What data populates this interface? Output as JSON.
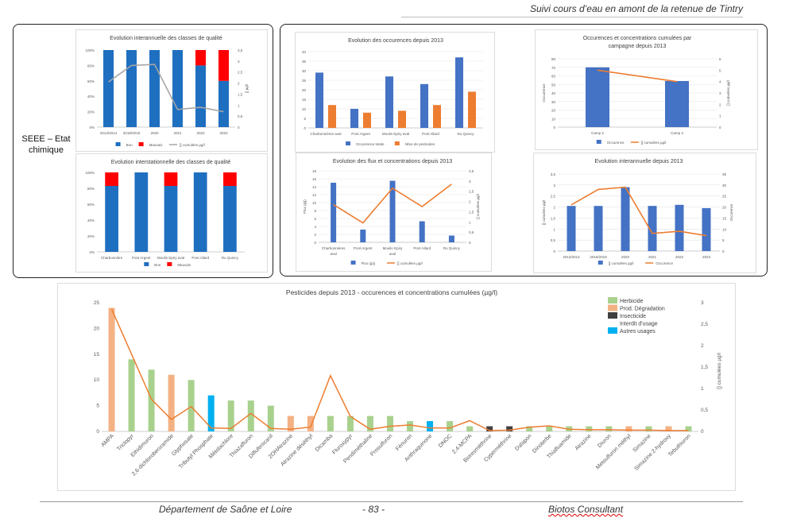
{
  "header": {
    "title": "Suivi cours d’eau en amont de la retenue de Tintry"
  },
  "footer": {
    "left": "Département de Saône et Loire",
    "page": "- 83 -",
    "right": "Biotos Consultant"
  },
  "section_label": {
    "line1": "SEEE – Etat",
    "line2": "chimique"
  },
  "colors": {
    "blue": "#4472c4",
    "orange": "#ed7d31",
    "grey": "#a5a5a5",
    "green": "#a9d18e",
    "salmon": "#f4b183",
    "dark": "#404040",
    "cyan": "#00b0f0",
    "red": "#ff0000",
    "bon": "#1f6fc0"
  },
  "chart_data": [
    {
      "id": "c1",
      "type": "bar",
      "title": "Evolution interannuelle des classes de qualité",
      "categories": [
        "2013/2014",
        "2018/2019",
        "2020",
        "2021",
        "2022",
        "2023"
      ],
      "ylim": [
        0,
        100
      ],
      "y_ticks": [
        "0%",
        "20%",
        "40%",
        "60%",
        "80%",
        "100%"
      ],
      "y2lim": [
        0,
        3.5
      ],
      "y2_ticks": [
        "0",
        "0,5",
        "1",
        "1,5",
        "2",
        "2,5",
        "3",
        "3,5"
      ],
      "y2label": "[] µg/l",
      "series": [
        {
          "name": "Bon",
          "values": [
            100,
            100,
            100,
            100,
            80,
            60
          ]
        },
        {
          "name": "Mauvais",
          "values": [
            0,
            0,
            0,
            0,
            20,
            40
          ]
        },
        {
          "name": "[] cumulées µg/l",
          "values": [
            2.05,
            2.8,
            2.85,
            0.8,
            0.9,
            0.7
          ],
          "axis": "y2"
        }
      ]
    },
    {
      "id": "c2",
      "type": "bar",
      "title": "Evolution interstationnelle des classes de qualité",
      "categories": [
        "Charbonnière",
        "Pont Argent",
        "Moulin Epiry aval",
        "Pont Allard",
        "Ru Quincy"
      ],
      "ylim": [
        0,
        100
      ],
      "y_ticks": [
        "0%",
        "20%",
        "40%",
        "60%",
        "80%",
        "100%"
      ],
      "series": [
        {
          "name": "Bon",
          "values": [
            83,
            100,
            83,
            100,
            83
          ]
        },
        {
          "name": "Mauvais",
          "values": [
            17,
            0,
            17,
            0,
            17
          ]
        }
      ]
    },
    {
      "id": "c3",
      "type": "bar",
      "title": "Evolution des occurences depuis 2013",
      "categories": [
        "Charbonnières aval",
        "Pont Argent",
        "Moulin Epiry aval",
        "Pont Allard",
        "Ru Quincy"
      ],
      "ylim": [
        0,
        40
      ],
      "y_ticks": [
        "0",
        "5",
        "10",
        "15",
        "20",
        "25",
        "30",
        "35",
        "40"
      ],
      "series": [
        {
          "name": "Occurrence totale",
          "values": [
            29,
            10,
            27,
            23,
            37
          ]
        },
        {
          "name": "Nbre de pesticides",
          "values": [
            12,
            8,
            9,
            12,
            19
          ]
        }
      ]
    },
    {
      "id": "c4",
      "type": "bar",
      "title": "Occurences et concentrations cumulées par campagne depuis 2013",
      "categories": [
        "Camp 2",
        "Camp 4"
      ],
      "ylim": [
        0,
        80
      ],
      "y_ticks": [
        "0",
        "10",
        "20",
        "30",
        "40",
        "50",
        "60",
        "70",
        "80"
      ],
      "ylabel": "Occurrence",
      "y2lim": [
        0,
        6
      ],
      "y2_ticks": [
        "0",
        "1",
        "2",
        "3",
        "4",
        "5",
        "6"
      ],
      "y2label": "[] cumulées µg/l",
      "series": [
        {
          "name": "Occurence",
          "values": [
            70,
            54
          ]
        },
        {
          "name": "[] cumulées µg/l",
          "values": [
            5.0,
            4.0
          ],
          "axis": "y2"
        }
      ]
    },
    {
      "id": "c5",
      "type": "bar",
      "title": "Evolution des flux et concentrations depuis 2013",
      "categories": [
        "Charbonnières aval",
        "Pont Argent",
        "Moulin Epiry aval",
        "Pont Allard",
        "Ru Quincy"
      ],
      "ylim": [
        0,
        18
      ],
      "y_ticks": [
        "0",
        "2",
        "4",
        "6",
        "8",
        "10",
        "12",
        "14",
        "16",
        "18"
      ],
      "ylabel": "Flux (g/j)",
      "y2lim": [
        0,
        3.5
      ],
      "y2_ticks": [
        "0",
        "0,5",
        "1",
        "1,5",
        "2",
        "2,5",
        "3",
        "3,5"
      ],
      "y2label": "[] cumulées µg/l",
      "series": [
        {
          "name": "Flux (g/j)",
          "values": [
            15,
            3.2,
            15.5,
            5.3,
            1.7
          ]
        },
        {
          "name": "[] cumulées µg/l",
          "values": [
            1.85,
            0.95,
            2.65,
            1.75,
            2.85
          ],
          "axis": "y2"
        }
      ]
    },
    {
      "id": "c6",
      "type": "bar",
      "title": "Evolution interannuelle depuis 2013",
      "categories": [
        "2013/2014",
        "2018/2019",
        "2020",
        "2021",
        "2022",
        "2023"
      ],
      "ylim": [
        0,
        3.5
      ],
      "y_ticks": [
        "0",
        "0,5",
        "1",
        "1,5",
        "2",
        "2,5",
        "3",
        "3,5"
      ],
      "ylabel": "[] cumulées µg/l",
      "y2lim": [
        0,
        35
      ],
      "y2_ticks": [
        "0",
        "5",
        "10",
        "15",
        "20",
        "25",
        "30",
        "35"
      ],
      "y2label": "Occurence",
      "series": [
        {
          "name": "[] cumulées µg/l",
          "values": [
            2.05,
            2.05,
            2.9,
            2.05,
            2.1,
            1.95
          ]
        },
        {
          "name": "Occurence",
          "values": [
            21,
            28,
            29,
            8,
            9,
            7
          ],
          "axis": "y2"
        }
      ]
    },
    {
      "id": "c7",
      "type": "bar",
      "title": "Pesticides depuis 2013 - occurences et concentrations cumulées (µg/l)",
      "categories": [
        "AMPA",
        "Triclopyr",
        "Ethidimuron",
        "2,6-dichlorobenzamide",
        "Glyphosate",
        "Tributyl Phosphate",
        "Métolachlore",
        "Thiazafluron",
        "Diflufenicanil",
        "2OHAtrazine",
        "Atrazine déséthyl",
        "Dicamba",
        "Fluroxypyr",
        "Pendiméthaline",
        "Prosulfuron",
        "Fénuron",
        "Anthraquinone",
        "DNOC",
        "2,4-MCPA",
        "Bioresméthrine",
        "Cyperméthrine",
        "Dalapon",
        "Dinoterbe",
        "Thiafluamide",
        "Atrazine",
        "Diuron",
        "Metsulfuron méthyl",
        "Simazine",
        "Simazine 2-hydroxy",
        "Tebuthiuron"
      ],
      "ylim": [
        0,
        25
      ],
      "y_ticks": [
        "0",
        "5",
        "10",
        "15",
        "20",
        "25"
      ],
      "y2lim": [
        0,
        3
      ],
      "y2_ticks": [
        "0",
        "0,5",
        "1",
        "1,5",
        "2",
        "2,5",
        "3"
      ],
      "y2label": "[] cumulées µg/l",
      "usage": [
        "prod",
        "herb",
        "herb",
        "prod",
        "herb",
        "autre",
        "herb",
        "herb",
        "herb",
        "prod",
        "prod",
        "herb",
        "herb",
        "herb",
        "herb",
        "herb",
        "autre",
        "herb",
        "herb",
        "insect",
        "insect",
        "herb",
        "herb",
        "herb",
        "herb",
        "herb",
        "prod",
        "herb",
        "prod",
        "herb"
      ],
      "legend": [
        "Herbicide",
        "Prod. Dégradation",
        "Insecticide",
        "Interdit d'usage",
        "Autres usages"
      ],
      "series": [
        {
          "name": "Occurence",
          "values": [
            24,
            14,
            12,
            11,
            10,
            7,
            6,
            6,
            5,
            3,
            3,
            3,
            3,
            3,
            3,
            2,
            2,
            2,
            1,
            1,
            1,
            1,
            1,
            1,
            1,
            1,
            1,
            1,
            1,
            1
          ]
        },
        {
          "name": "[] cumulées µg/l",
          "values": [
            2.85,
            1.8,
            0.75,
            0.28,
            0.58,
            0.08,
            0.07,
            0.42,
            0.07,
            0.05,
            0.1,
            1.3,
            0.35,
            0.05,
            0.12,
            0.15,
            0.08,
            0.08,
            0.25,
            0.02,
            0.03,
            0.1,
            0.13,
            0.05,
            0.04,
            0.04,
            0.03,
            0.03,
            0.02,
            0.02
          ],
          "axis": "y2"
        }
      ]
    }
  ]
}
